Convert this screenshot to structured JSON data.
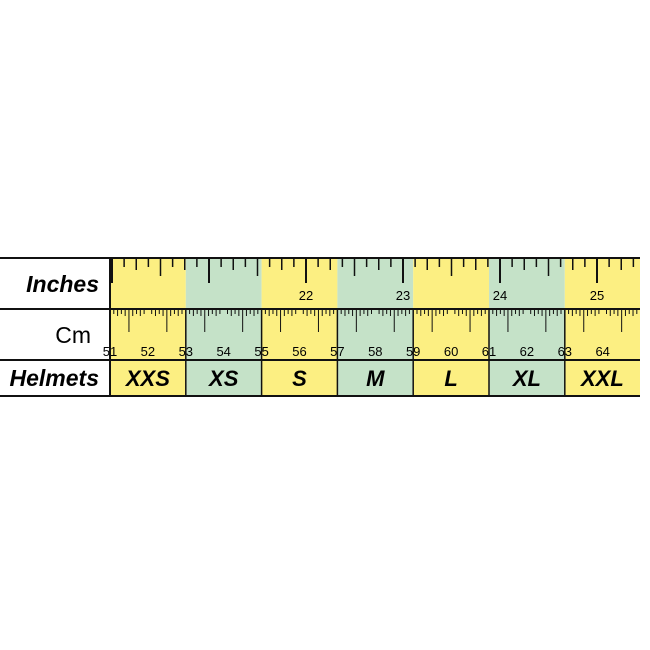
{
  "row_labels": {
    "inches": "Inches",
    "cm": "Cm",
    "helmets": "Helmets"
  },
  "colors": {
    "yellow": "#fcef82",
    "green": "#c5e2c8",
    "line": "#111111"
  },
  "inch_labels": [
    "22",
    "23",
    "24",
    "25"
  ],
  "cm_labels": [
    "51",
    "52",
    "53",
    "54",
    "55",
    "56",
    "57",
    "58",
    "59",
    "60",
    "61",
    "62",
    "63",
    "64"
  ],
  "sizes": [
    {
      "label": "XXS",
      "from_cm": 51,
      "to_cm": 53,
      "color": "yellow"
    },
    {
      "label": "XS",
      "from_cm": 53,
      "to_cm": 55,
      "color": "green"
    },
    {
      "label": "S",
      "from_cm": 55,
      "to_cm": 57,
      "color": "yellow"
    },
    {
      "label": "M",
      "from_cm": 57,
      "to_cm": 59,
      "color": "green"
    },
    {
      "label": "L",
      "from_cm": 59,
      "to_cm": 61,
      "color": "yellow"
    },
    {
      "label": "XL",
      "from_cm": 61,
      "to_cm": 63,
      "color": "green"
    },
    {
      "label": "XXL",
      "from_cm": 63,
      "to_cm": 65,
      "color": "yellow"
    }
  ]
}
